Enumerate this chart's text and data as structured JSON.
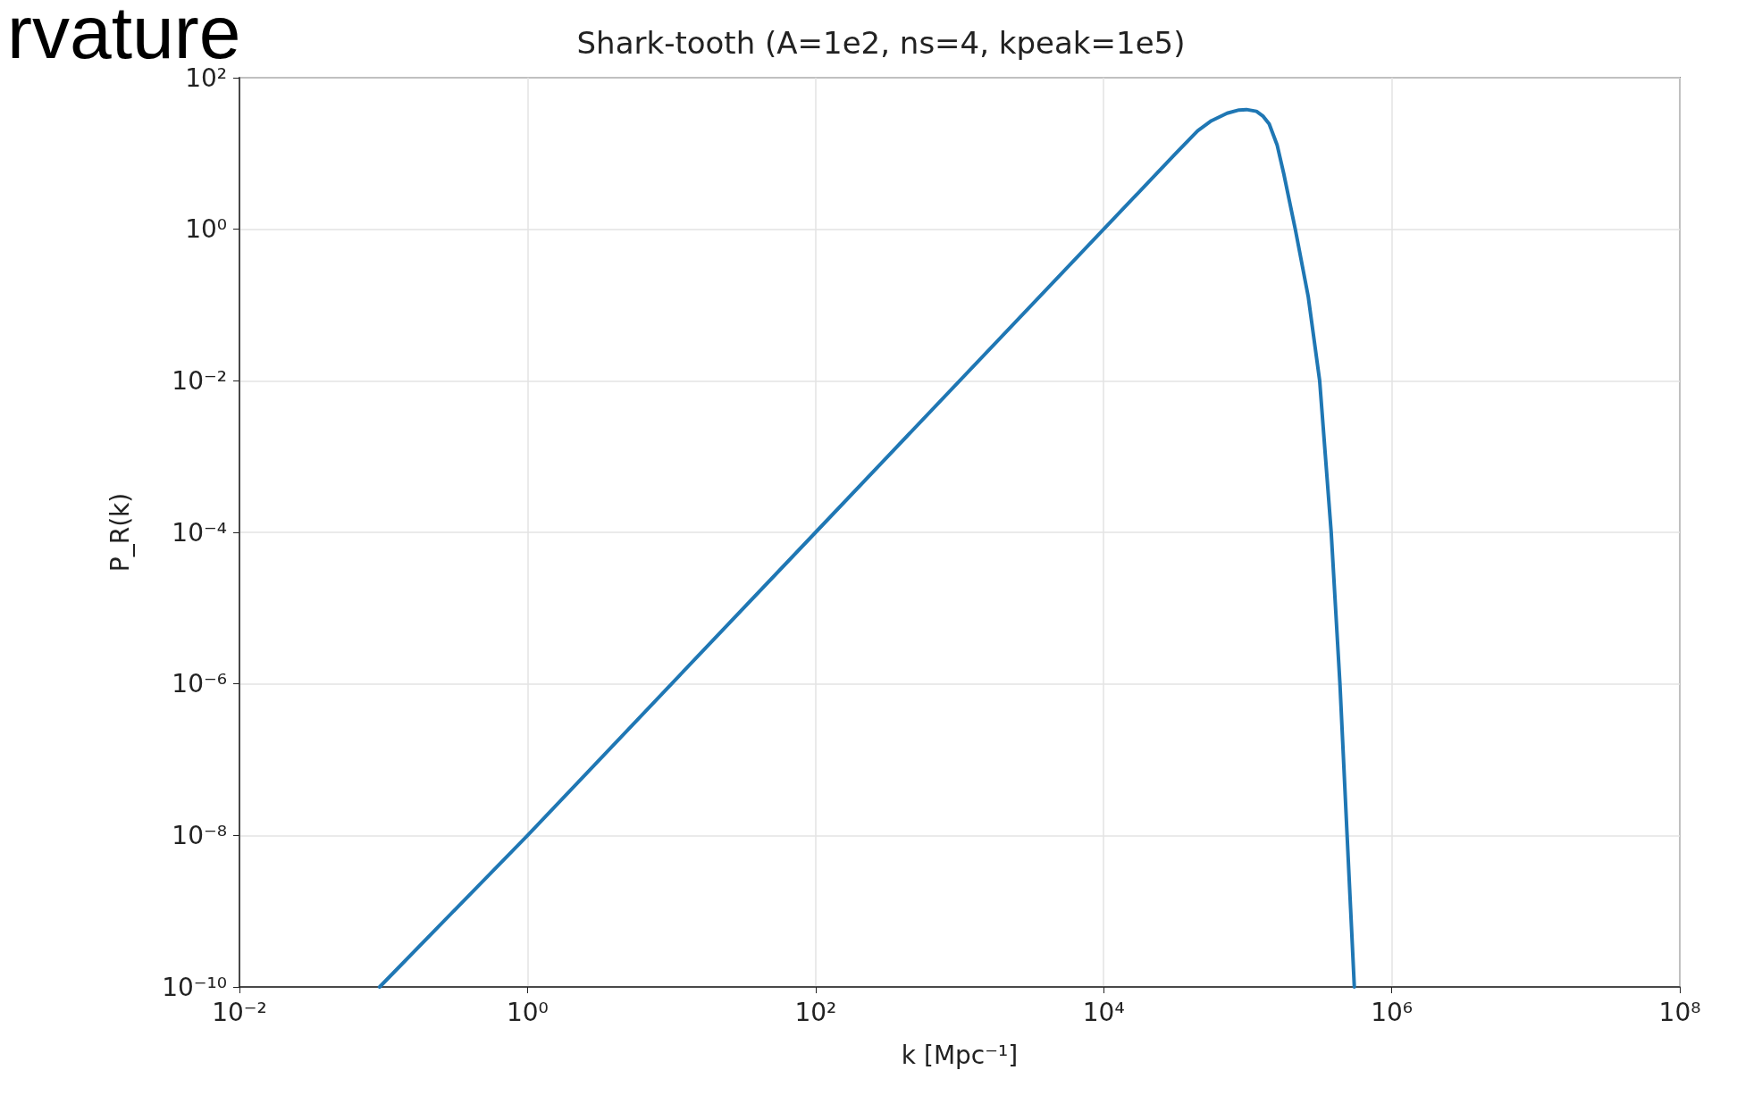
{
  "chart_data": {
    "type": "line",
    "title": "Shark-tooth (A=1e2, ns=4, kpeak=1e5)",
    "xlabel": "k [Mpc⁻¹]",
    "ylabel": "P_R(k)",
    "annotations": [
      "rvature"
    ],
    "log": "xy",
    "grid": true,
    "xlim": [
      0.01,
      100000000
    ],
    "ylim": [
      1e-10,
      100
    ],
    "xticks": [
      {
        "value": 0.01,
        "label": "10⁻²"
      },
      {
        "value": 1,
        "label": "10⁰"
      },
      {
        "value": 100,
        "label": "10²"
      },
      {
        "value": 10000,
        "label": "10⁴"
      },
      {
        "value": 1000000,
        "label": "10⁶"
      },
      {
        "value": 100000000,
        "label": "10⁸"
      }
    ],
    "yticks": [
      {
        "value": 1e-10,
        "label": "10⁻¹⁰"
      },
      {
        "value": 1e-08,
        "label": "10⁻⁸"
      },
      {
        "value": 1e-06,
        "label": "10⁻⁶"
      },
      {
        "value": 0.0001,
        "label": "10⁻⁴"
      },
      {
        "value": 0.01,
        "label": "10⁻²"
      },
      {
        "value": 1,
        "label": "10⁰"
      },
      {
        "value": 100,
        "label": "10²"
      }
    ],
    "series": [
      {
        "color": "#1f77b4",
        "x": [
          0.094,
          1,
          100,
          10000,
          20000,
          31600,
          45000,
          56000,
          72000,
          87000,
          98000,
          115000,
          128000,
          141000,
          160000,
          178000,
          214000,
          263000,
          316000,
          380000,
          437000,
          490000,
          550000
        ],
        "values": [
          1e-10,
          1e-08,
          0.0001,
          1,
          4,
          10,
          20,
          27,
          34,
          37.5,
          38,
          36,
          31,
          24.5,
          13,
          5.4,
          1,
          0.13,
          0.01,
          0.0001,
          1e-06,
          1e-08,
          1e-10
        ]
      }
    ]
  }
}
